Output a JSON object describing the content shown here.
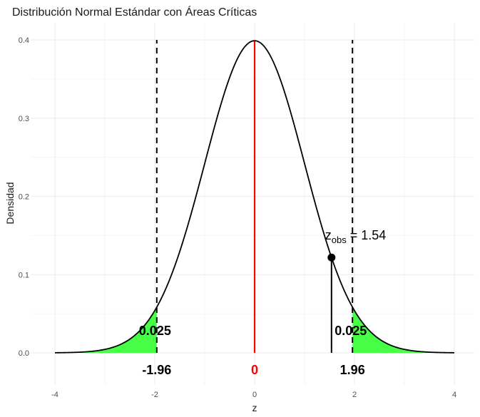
{
  "chart_data": {
    "type": "area",
    "title": "Distribución Normal Estándar con Áreas Críticas",
    "xlabel": "z",
    "ylabel": "Densidad",
    "xlim": [
      -4,
      4
    ],
    "ylim": [
      0,
      0.4
    ],
    "x_ticks": [
      -4,
      -2,
      0,
      2,
      4
    ],
    "x_tick_labels": [
      "-4",
      "-2",
      "0",
      "2",
      "4"
    ],
    "y_ticks": [
      0,
      0.1,
      0.2,
      0.3,
      0.4
    ],
    "y_tick_labels": [
      "0.0",
      "0.1",
      "0.2",
      "0.3",
      "0.4"
    ],
    "grid": true,
    "curve": {
      "distribution": "standard-normal",
      "mean": 0,
      "sd": 1,
      "color": "#000000"
    },
    "critical_values": [
      -1.96,
      1.96
    ],
    "critical_labels": [
      "-1.96",
      "1.96"
    ],
    "shaded_tail_color": "#33ff33",
    "tail_areas": [
      {
        "from": -4,
        "to": -1.96,
        "label": "0.025"
      },
      {
        "from": 1.96,
        "to": 4,
        "label": "0.025"
      }
    ],
    "mean_line": {
      "x": 0,
      "color": "#ff0000",
      "label": "0"
    },
    "observed": {
      "z": 1.54,
      "label_main": "z",
      "label_sub": "obs",
      "label_value": " = 1.54",
      "color": "#000000"
    }
  }
}
